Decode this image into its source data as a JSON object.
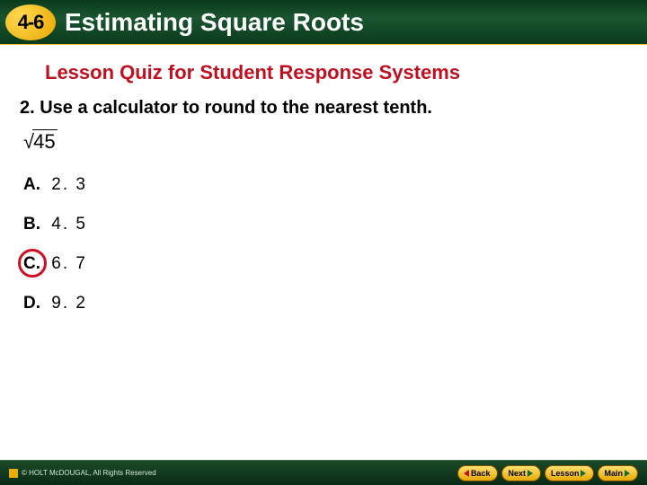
{
  "header": {
    "section_number": "4-6",
    "chapter_title": "Estimating Square Roots",
    "badge_bg_gradient": [
      "#ffd750",
      "#e8a800"
    ],
    "bar_bg_gradient": [
      "#0a3a1a",
      "#1a5530",
      "#0a3a1a"
    ],
    "title_color": "#ffffff"
  },
  "subtitle": {
    "text": "Lesson Quiz for Student Response Systems",
    "color": "#c01020",
    "fontsize": 22
  },
  "question": {
    "number_prefix": "2.",
    "text": "2. Use a calculator to round to the nearest tenth.",
    "radicand": "45",
    "fontsize": 20
  },
  "answers": [
    {
      "label": "A.",
      "value": "2. 3",
      "correct": false
    },
    {
      "label": "B.",
      "value": "4. 5",
      "correct": false
    },
    {
      "label": "C.",
      "value": "6. 7",
      "correct": true
    },
    {
      "label": "D.",
      "value": "9. 2",
      "correct": false
    }
  ],
  "correct_circle_color": "#d01020",
  "footer": {
    "copyright": "© HOLT McDOUGAL, All Rights Reserved",
    "buttons": {
      "back": "Back",
      "next": "Next",
      "lesson": "Lesson",
      "main": "Main"
    },
    "bar_bg_gradient": [
      "#1a4a28",
      "#0a2a15"
    ],
    "btn_bg_gradient": [
      "#ffe070",
      "#e8a800"
    ]
  }
}
